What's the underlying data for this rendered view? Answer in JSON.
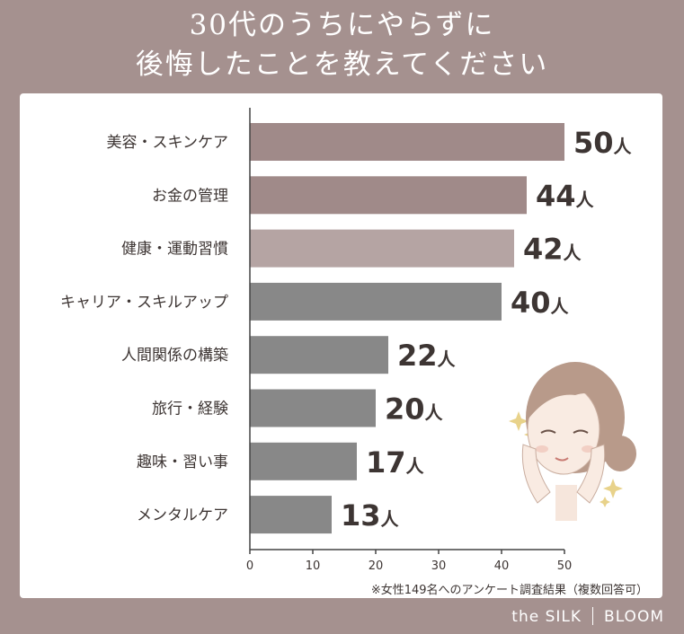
{
  "title_line1": "30代のうちにやらずに",
  "title_line2": "後悔したことを教えてください",
  "footnote": "※女性149名へのアンケート調査結果（複数回答可）",
  "brand": {
    "left": "the SILK",
    "right": "BLOOM"
  },
  "colors": {
    "background": "#a5918f",
    "bar_top": "#a08a89",
    "bar_light": "#b5a4a3",
    "bar_gray": "#888888"
  },
  "illustration": "woman-face-illustration",
  "chart_data": {
    "type": "bar",
    "orientation": "horizontal",
    "categories": [
      "美容・スキンケア",
      "お金の管理",
      "健康・運動習慣",
      "キャリア・スキルアップ",
      "人間関係の構築",
      "旅行・経験",
      "趣味・習い事",
      "メンタルケア"
    ],
    "values": [
      50,
      44,
      42,
      40,
      22,
      20,
      17,
      13
    ],
    "unit": "人",
    "bar_colors": [
      "#a08a89",
      "#a08a89",
      "#b5a4a3",
      "#888888",
      "#888888",
      "#888888",
      "#888888",
      "#888888"
    ],
    "xticks": [
      0,
      10,
      20,
      30,
      40,
      50
    ],
    "xlim": [
      0,
      50
    ],
    "grid": false
  }
}
